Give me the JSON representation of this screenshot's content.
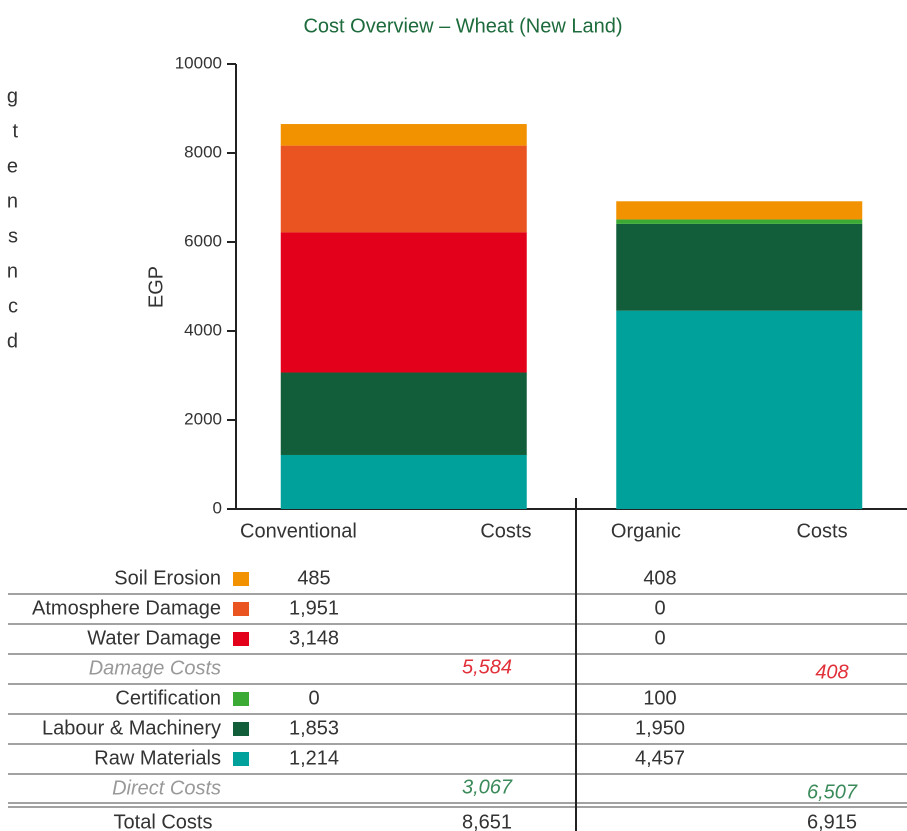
{
  "side_text": [
    "g",
    "t",
    "e",
    "n",
    "s",
    "n",
    "c",
    "d"
  ],
  "chart_data": {
    "type": "stacked_bar",
    "title": "Cost Overview – Wheat (New Land)",
    "y_label": "EGP",
    "categories": [
      "Conventional Costs",
      "Organic Costs"
    ],
    "ylim": [
      0,
      10000
    ],
    "yticks": [
      0,
      2000,
      4000,
      6000,
      8000,
      10000
    ],
    "series": [
      {
        "name": "Raw Materials",
        "color": "#00a19a",
        "values": [
          1214,
          4457
        ],
        "value_labels": [
          "1,214",
          "4,457"
        ]
      },
      {
        "name": "Labour & Machinery",
        "color": "#135e3a",
        "values": [
          1853,
          1950
        ],
        "value_labels": [
          "1,853",
          "1,950"
        ]
      },
      {
        "name": "Certification",
        "color": "#3aaa35",
        "values": [
          0,
          100
        ],
        "value_labels": [
          "0",
          "100"
        ]
      },
      {
        "name": "Water Damage",
        "color": "#e2001a",
        "values": [
          3148,
          0
        ],
        "value_labels": [
          "3,148",
          "0"
        ]
      },
      {
        "name": "Atmosphere Damage",
        "color": "#e95420",
        "values": [
          1951,
          0
        ],
        "value_labels": [
          "1,951",
          "0"
        ]
      },
      {
        "name": "Soil Erosion",
        "color": "#f39200",
        "values": [
          485,
          408
        ],
        "value_labels": [
          "485",
          "408"
        ]
      }
    ]
  },
  "table": {
    "damage_costs": {
      "label": "Damage Costs",
      "values": [
        "5,584",
        "408"
      ],
      "color": "#e2303a"
    },
    "direct_costs": {
      "label": "Direct Costs",
      "values": [
        "3,067",
        "6,507"
      ],
      "color": "#3a8a5a"
    },
    "total_costs": {
      "label": "Total Costs",
      "values": [
        "8,651",
        "6,915"
      ]
    }
  }
}
